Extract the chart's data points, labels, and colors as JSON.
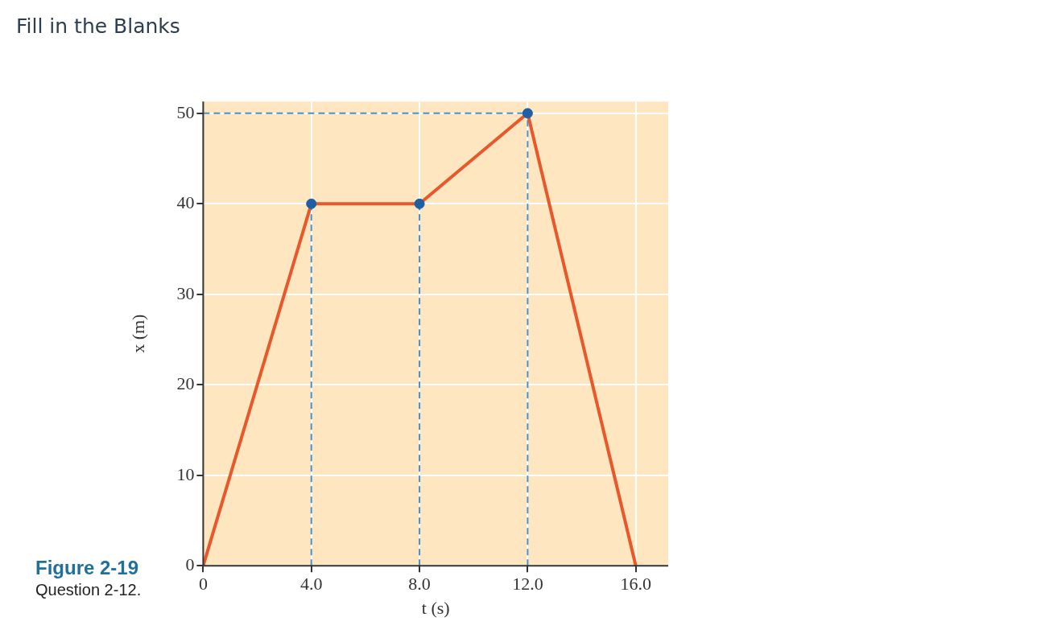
{
  "chart_data": {
    "type": "line",
    "title": "Fill in the Blanks",
    "xlabel": "t (s)",
    "ylabel": "x (m)",
    "annotations": [
      "Figure 2-19",
      "Question 2-12."
    ],
    "x": [
      0,
      4,
      8,
      12,
      16
    ],
    "series": [
      {
        "color": "#e8582a",
        "values": [
          0,
          40,
          40,
          50,
          0
        ],
        "marker": "none"
      },
      {
        "type": "scatter",
        "color": "#1f5fa6",
        "x": [
          4,
          8,
          12
        ],
        "values": [
          40,
          40,
          50
        ],
        "marker": "circle"
      },
      {
        "type": "line",
        "color": "#4a90c8",
        "x": [
          4,
          4
        ],
        "values": [
          0,
          40
        ],
        "line_style": "dashed",
        "marker": "none"
      },
      {
        "type": "line",
        "color": "#4a90c8",
        "x": [
          8,
          8
        ],
        "values": [
          0,
          40
        ],
        "line_style": "dashed",
        "marker": "none"
      },
      {
        "type": "line",
        "color": "#4a90c8",
        "x": [
          12,
          12
        ],
        "values": [
          0,
          50
        ],
        "line_style": "dashed",
        "marker": "none"
      },
      {
        "type": "line",
        "color": "#4a90c8",
        "x": [
          0,
          12
        ],
        "values": [
          50,
          50
        ],
        "line_style": "dashed",
        "marker": "none"
      }
    ],
    "xlim": [
      0,
      17.2
    ],
    "ylim": [
      0,
      51.3
    ],
    "xticks": [
      0,
      {
        "value": 4,
        "label": "4.0"
      },
      {
        "value": 8,
        "label": "8.0"
      },
      {
        "value": 12,
        "label": "12.0"
      },
      {
        "value": 16,
        "label": "16.0"
      }
    ],
    "yticks": [
      0,
      10,
      20,
      30,
      40,
      50
    ],
    "grid": true,
    "legend": false
  }
}
